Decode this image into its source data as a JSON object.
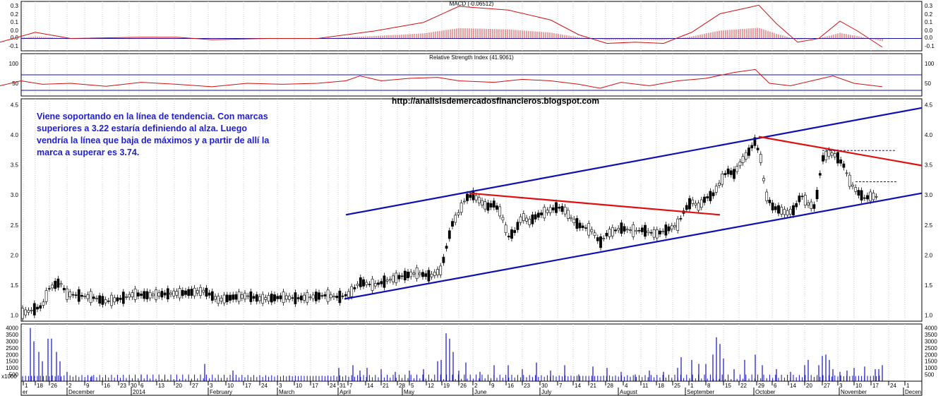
{
  "source_url": "http://analisisdemercadosfinancieros.blogspot.com",
  "annotation": "Viene soportando en la línea de tendencia. Con marcas superiores a 3.22 estaría definiendo al alza. Luego vendría la línea que baja de máximos y a partir de allí la marca a superar es 3.74.",
  "colors": {
    "macd": "#d01010",
    "rsi": "#d01010",
    "trendline_blue": "#1010b0",
    "trendline_red": "#e01010",
    "volume": "#1010c0",
    "annotation": "#1f1fd0"
  },
  "chart_data": [
    {
      "type": "bar",
      "panel": "macd",
      "title": "MACD (-0.06512)",
      "ylim": [
        -0.1,
        0.3
      ],
      "yticks": [
        "0.3",
        "0.2",
        "0.1",
        "0.0",
        "0.0",
        "-0.1"
      ],
      "reference_line": 0.0,
      "macd_points": [
        [
          0,
          -0.03
        ],
        [
          50,
          0.05
        ],
        [
          100,
          0.0
        ],
        [
          200,
          0.01
        ],
        [
          250,
          0.01
        ],
        [
          300,
          -0.01
        ],
        [
          380,
          0.0
        ],
        [
          450,
          0.0
        ],
        [
          530,
          0.06
        ],
        [
          600,
          0.13
        ],
        [
          650,
          0.26
        ],
        [
          720,
          0.23
        ],
        [
          780,
          0.15
        ],
        [
          820,
          0.03
        ],
        [
          860,
          -0.04
        ],
        [
          900,
          -0.03
        ],
        [
          940,
          -0.04
        ],
        [
          980,
          0.05
        ],
        [
          1020,
          0.2
        ],
        [
          1060,
          0.25
        ],
        [
          1075,
          0.27
        ],
        [
          1100,
          0.12
        ],
        [
          1130,
          -0.03
        ],
        [
          1160,
          0.0
        ],
        [
          1190,
          0.14
        ],
        [
          1215,
          0.06
        ],
        [
          1250,
          -0.07
        ]
      ]
    },
    {
      "type": "line",
      "panel": "rsi",
      "title": "Relative Strength Index (41.9061)",
      "ylim": [
        20,
        120
      ],
      "yticks": [
        "100",
        "50"
      ],
      "reference_lines": [
        70,
        30
      ],
      "rsi_points": [
        [
          0,
          45
        ],
        [
          30,
          55
        ],
        [
          60,
          48
        ],
        [
          100,
          50
        ],
        [
          150,
          44
        ],
        [
          200,
          52
        ],
        [
          250,
          48
        ],
        [
          300,
          43
        ],
        [
          350,
          50
        ],
        [
          400,
          48
        ],
        [
          450,
          50
        ],
        [
          490,
          55
        ],
        [
          510,
          65
        ],
        [
          540,
          55
        ],
        [
          580,
          60
        ],
        [
          620,
          62
        ],
        [
          650,
          55
        ],
        [
          700,
          52
        ],
        [
          740,
          58
        ],
        [
          780,
          55
        ],
        [
          820,
          48
        ],
        [
          850,
          40
        ],
        [
          880,
          52
        ],
        [
          920,
          45
        ],
        [
          960,
          55
        ],
        [
          1000,
          60
        ],
        [
          1040,
          72
        ],
        [
          1070,
          78
        ],
        [
          1090,
          50
        ],
        [
          1120,
          45
        ],
        [
          1150,
          55
        ],
        [
          1180,
          65
        ],
        [
          1210,
          50
        ],
        [
          1250,
          43
        ]
      ]
    },
    {
      "type": "candlestick",
      "panel": "price",
      "ylim": [
        0.9,
        4.6
      ],
      "yticks": [
        "4.5",
        "4.0",
        "3.5",
        "3.0",
        "2.5",
        "2.0",
        "1.5",
        "1.0"
      ],
      "price_points": [
        [
          32,
          1.03
        ],
        [
          45,
          1.08
        ],
        [
          60,
          1.15
        ],
        [
          70,
          1.45
        ],
        [
          85,
          1.55
        ],
        [
          95,
          1.35
        ],
        [
          110,
          1.33
        ],
        [
          130,
          1.3
        ],
        [
          150,
          1.23
        ],
        [
          170,
          1.27
        ],
        [
          190,
          1.35
        ],
        [
          210,
          1.33
        ],
        [
          230,
          1.35
        ],
        [
          260,
          1.37
        ],
        [
          290,
          1.4
        ],
        [
          310,
          1.25
        ],
        [
          330,
          1.3
        ],
        [
          350,
          1.32
        ],
        [
          370,
          1.27
        ],
        [
          400,
          1.3
        ],
        [
          420,
          1.28
        ],
        [
          440,
          1.3
        ],
        [
          460,
          1.33
        ],
        [
          480,
          1.3
        ],
        [
          495,
          1.35
        ],
        [
          510,
          1.55
        ],
        [
          530,
          1.5
        ],
        [
          550,
          1.58
        ],
        [
          570,
          1.65
        ],
        [
          590,
          1.7
        ],
        [
          610,
          1.65
        ],
        [
          625,
          1.75
        ],
        [
          632,
          2.1
        ],
        [
          640,
          2.5
        ],
        [
          650,
          2.7
        ],
        [
          660,
          2.95
        ],
        [
          670,
          3.0
        ],
        [
          680,
          2.9
        ],
        [
          690,
          2.8
        ],
        [
          700,
          2.85
        ],
        [
          710,
          2.7
        ],
        [
          720,
          2.3
        ],
        [
          730,
          2.4
        ],
        [
          740,
          2.65
        ],
        [
          750,
          2.55
        ],
        [
          760,
          2.65
        ],
        [
          770,
          2.7
        ],
        [
          780,
          2.75
        ],
        [
          790,
          2.8
        ],
        [
          800,
          2.75
        ],
        [
          810,
          2.6
        ],
        [
          820,
          2.5
        ],
        [
          830,
          2.45
        ],
        [
          840,
          2.4
        ],
        [
          850,
          2.2
        ],
        [
          860,
          2.35
        ],
        [
          870,
          2.4
        ],
        [
          880,
          2.45
        ],
        [
          890,
          2.42
        ],
        [
          900,
          2.4
        ],
        [
          910,
          2.42
        ],
        [
          920,
          2.38
        ],
        [
          930,
          2.35
        ],
        [
          940,
          2.4
        ],
        [
          950,
          2.45
        ],
        [
          960,
          2.5
        ],
        [
          970,
          2.75
        ],
        [
          980,
          2.9
        ],
        [
          990,
          2.8
        ],
        [
          1000,
          2.95
        ],
        [
          1010,
          3.0
        ],
        [
          1020,
          3.2
        ],
        [
          1030,
          3.4
        ],
        [
          1040,
          3.35
        ],
        [
          1050,
          3.55
        ],
        [
          1060,
          3.7
        ],
        [
          1070,
          3.9
        ],
        [
          1078,
          3.6
        ],
        [
          1085,
          3.0
        ],
        [
          1095,
          2.8
        ],
        [
          1105,
          2.75
        ],
        [
          1115,
          2.7
        ],
        [
          1125,
          2.75
        ],
        [
          1135,
          3.0
        ],
        [
          1145,
          2.85
        ],
        [
          1155,
          2.8
        ],
        [
          1165,
          3.6
        ],
        [
          1175,
          3.7
        ],
        [
          1185,
          3.65
        ],
        [
          1195,
          3.5
        ],
        [
          1205,
          3.2
        ],
        [
          1215,
          3.05
        ],
        [
          1225,
          2.95
        ],
        [
          1235,
          2.98
        ],
        [
          1245,
          2.97
        ]
      ],
      "trendlines": [
        {
          "color": "blue",
          "label": "upper channel",
          "points": [
            [
              490,
              2.67
            ],
            [
              1306,
              4.45
            ]
          ]
        },
        {
          "color": "blue",
          "label": "lower channel",
          "points": [
            [
              488,
              1.27
            ],
            [
              1306,
              3.03
            ]
          ]
        },
        {
          "color": "red",
          "label": "first resistance",
          "points": [
            [
              665,
              3.03
            ],
            [
              1020,
              2.67
            ]
          ]
        },
        {
          "color": "red",
          "label": "descending highs",
          "points": [
            [
              1075,
              3.97
            ],
            [
              1306,
              3.49
            ]
          ]
        }
      ],
      "levels": [
        3.74,
        3.22
      ]
    },
    {
      "type": "bar",
      "panel": "volume",
      "ylim": [
        0,
        4300
      ],
      "yticks": [
        "4000",
        "3500",
        "3000",
        "2500",
        "2000",
        "1500",
        "1000",
        "500"
      ],
      "corner_label": "x1000",
      "volume_bars": [
        [
          43,
          4000
        ],
        [
          48,
          3000
        ],
        [
          55,
          2200
        ],
        [
          60,
          1500
        ],
        [
          68,
          3200
        ],
        [
          73,
          3200
        ],
        [
          80,
          2200
        ],
        [
          85,
          1500
        ],
        [
          95,
          700
        ],
        [
          130,
          400
        ],
        [
          200,
          500
        ],
        [
          290,
          1300
        ],
        [
          330,
          800
        ],
        [
          410,
          400
        ],
        [
          480,
          1000
        ],
        [
          500,
          1200
        ],
        [
          510,
          800
        ],
        [
          520,
          1000
        ],
        [
          540,
          900
        ],
        [
          560,
          700
        ],
        [
          580,
          800
        ],
        [
          600,
          900
        ],
        [
          620,
          1500
        ],
        [
          625,
          1600
        ],
        [
          632,
          3600
        ],
        [
          637,
          3200
        ],
        [
          642,
          2200
        ],
        [
          650,
          800
        ],
        [
          660,
          1400
        ],
        [
          680,
          700
        ],
        [
          700,
          1200
        ],
        [
          720,
          1200
        ],
        [
          740,
          900
        ],
        [
          760,
          1400
        ],
        [
          780,
          800
        ],
        [
          800,
          1200
        ],
        [
          820,
          500
        ],
        [
          840,
          1100
        ],
        [
          860,
          1000
        ],
        [
          880,
          700
        ],
        [
          900,
          500
        ],
        [
          920,
          800
        ],
        [
          940,
          700
        ],
        [
          960,
          1000
        ],
        [
          965,
          1800
        ],
        [
          980,
          1600
        ],
        [
          990,
          1300
        ],
        [
          1000,
          1300
        ],
        [
          1010,
          2000
        ],
        [
          1015,
          3300
        ],
        [
          1020,
          2800
        ],
        [
          1025,
          1700
        ],
        [
          1040,
          900
        ],
        [
          1055,
          1600
        ],
        [
          1070,
          2000
        ],
        [
          1080,
          1200
        ],
        [
          1100,
          900
        ],
        [
          1120,
          700
        ],
        [
          1140,
          1200
        ],
        [
          1145,
          1600
        ],
        [
          1160,
          1200
        ],
        [
          1165,
          1900
        ],
        [
          1170,
          2000
        ],
        [
          1175,
          1600
        ],
        [
          1180,
          900
        ],
        [
          1190,
          700
        ],
        [
          1200,
          800
        ],
        [
          1210,
          1000
        ],
        [
          1225,
          1100
        ],
        [
          1240,
          900
        ],
        [
          1245,
          900
        ],
        [
          1250,
          1200
        ]
      ]
    }
  ],
  "x_axis": {
    "day_ticks": [
      [
        33,
        "1"
      ],
      [
        50,
        "18"
      ],
      [
        70,
        "26"
      ],
      [
        95,
        "2"
      ],
      [
        120,
        "9"
      ],
      [
        145,
        "16"
      ],
      [
        168,
        "23"
      ],
      [
        183,
        "30"
      ],
      [
        197,
        "6"
      ],
      [
        222,
        "13"
      ],
      [
        247,
        "20"
      ],
      [
        270,
        "27"
      ],
      [
        295,
        "3"
      ],
      [
        320,
        "10"
      ],
      [
        345,
        "17"
      ],
      [
        368,
        "24"
      ],
      [
        393,
        "3"
      ],
      [
        417,
        "10"
      ],
      [
        440,
        "17"
      ],
      [
        465,
        "24"
      ],
      [
        479,
        "31"
      ],
      [
        493,
        "7"
      ],
      [
        518,
        "14"
      ],
      [
        540,
        "21"
      ],
      [
        563,
        "28"
      ],
      [
        580,
        "5"
      ],
      [
        604,
        "12"
      ],
      [
        626,
        "19"
      ],
      [
        650,
        "26"
      ],
      [
        670,
        "2"
      ],
      [
        694,
        "9"
      ],
      [
        717,
        "16"
      ],
      [
        740,
        "23"
      ],
      [
        765,
        "30"
      ],
      [
        790,
        "7"
      ],
      [
        812,
        "14"
      ],
      [
        834,
        "21"
      ],
      [
        858,
        "28"
      ],
      [
        883,
        "4"
      ],
      [
        908,
        "11"
      ],
      [
        930,
        "18"
      ],
      [
        953,
        "25"
      ],
      [
        976,
        "1"
      ],
      [
        1000,
        "8"
      ],
      [
        1025,
        "15"
      ],
      [
        1047,
        "22"
      ],
      [
        1072,
        "29"
      ],
      [
        1094,
        "6"
      ],
      [
        1117,
        "14"
      ],
      [
        1140,
        "20"
      ],
      [
        1165,
        "27"
      ],
      [
        1187,
        "3"
      ],
      [
        1210,
        "10"
      ],
      [
        1234,
        "17"
      ],
      [
        1259,
        "24"
      ],
      [
        1282,
        "1"
      ]
    ],
    "month_labels": [
      [
        30,
        "er"
      ],
      [
        95,
        "December"
      ],
      [
        186,
        "2014"
      ],
      [
        295,
        "February"
      ],
      [
        393,
        "March"
      ],
      [
        479,
        "April"
      ],
      [
        570,
        "May"
      ],
      [
        670,
        "June"
      ],
      [
        765,
        "July"
      ],
      [
        876,
        "August"
      ],
      [
        971,
        "September"
      ],
      [
        1068,
        "October"
      ],
      [
        1189,
        "November"
      ],
      [
        1280,
        "Decen"
      ]
    ]
  }
}
